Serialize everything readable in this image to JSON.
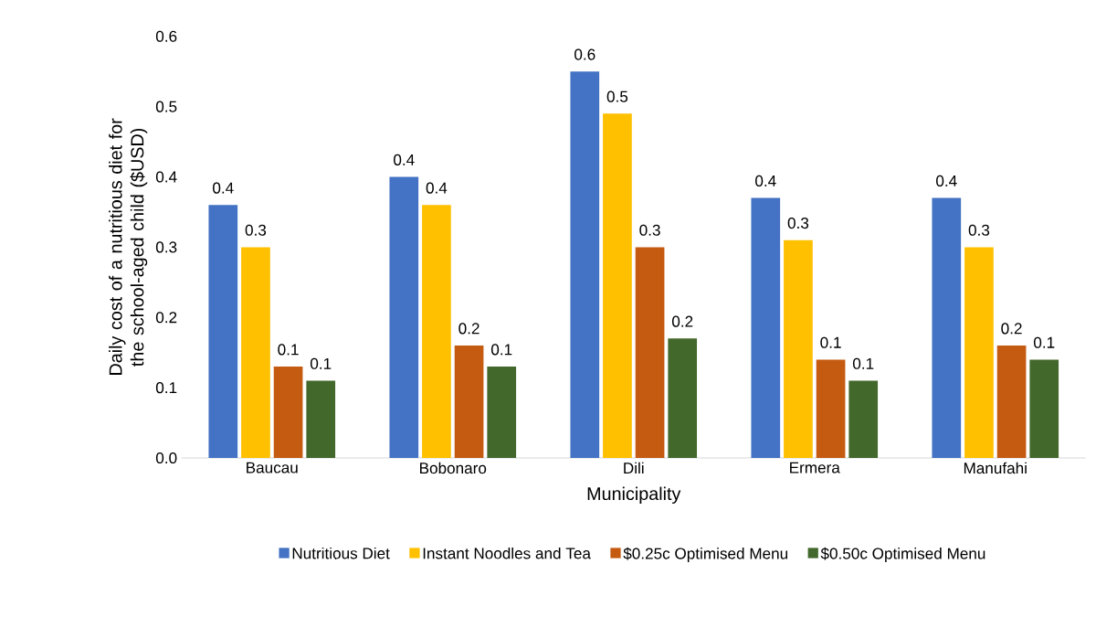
{
  "chart_data": {
    "type": "bar",
    "xlabel": "Municipality",
    "ylabel": "Daily cost of a nutritious diet for the school-aged child  ($USD)",
    "categories": [
      "Baucau",
      "Bobonaro",
      "Dili",
      "Ermera",
      "Manufahi"
    ],
    "series": [
      {
        "name": "Nutritious Diet",
        "color": "#4472c4",
        "values": [
          0.36,
          0.4,
          0.55,
          0.37,
          0.37
        ],
        "value_labels": [
          "0.4",
          "0.4",
          "0.6",
          "0.4",
          "0.4"
        ]
      },
      {
        "name": "Instant Noodles and Tea",
        "color": "#ffc000",
        "values": [
          0.3,
          0.36,
          0.49,
          0.31,
          0.3
        ],
        "value_labels": [
          "0.3",
          "0.4",
          "0.5",
          "0.3",
          "0.3"
        ]
      },
      {
        "name": "$0.25c Optimised Menu",
        "color": "#c55a11",
        "values": [
          0.13,
          0.16,
          0.3,
          0.14,
          0.16
        ],
        "value_labels": [
          "0.1",
          "0.2",
          "0.3",
          "0.1",
          "0.2"
        ]
      },
      {
        "name": "$0.50c Optimised Menu",
        "color": "#43682b",
        "values": [
          0.11,
          0.13,
          0.17,
          0.11,
          0.14
        ],
        "value_labels": [
          "0.1",
          "0.1",
          "0.2",
          "0.1",
          "0.1"
        ]
      }
    ],
    "ylim": [
      0,
      0.6
    ],
    "yticks": [
      {
        "value": 0,
        "label": "0.0"
      },
      0.1,
      0.2,
      0.3,
      0.4,
      0.5,
      0.6
    ],
    "grid": false,
    "legend": "bottom"
  }
}
